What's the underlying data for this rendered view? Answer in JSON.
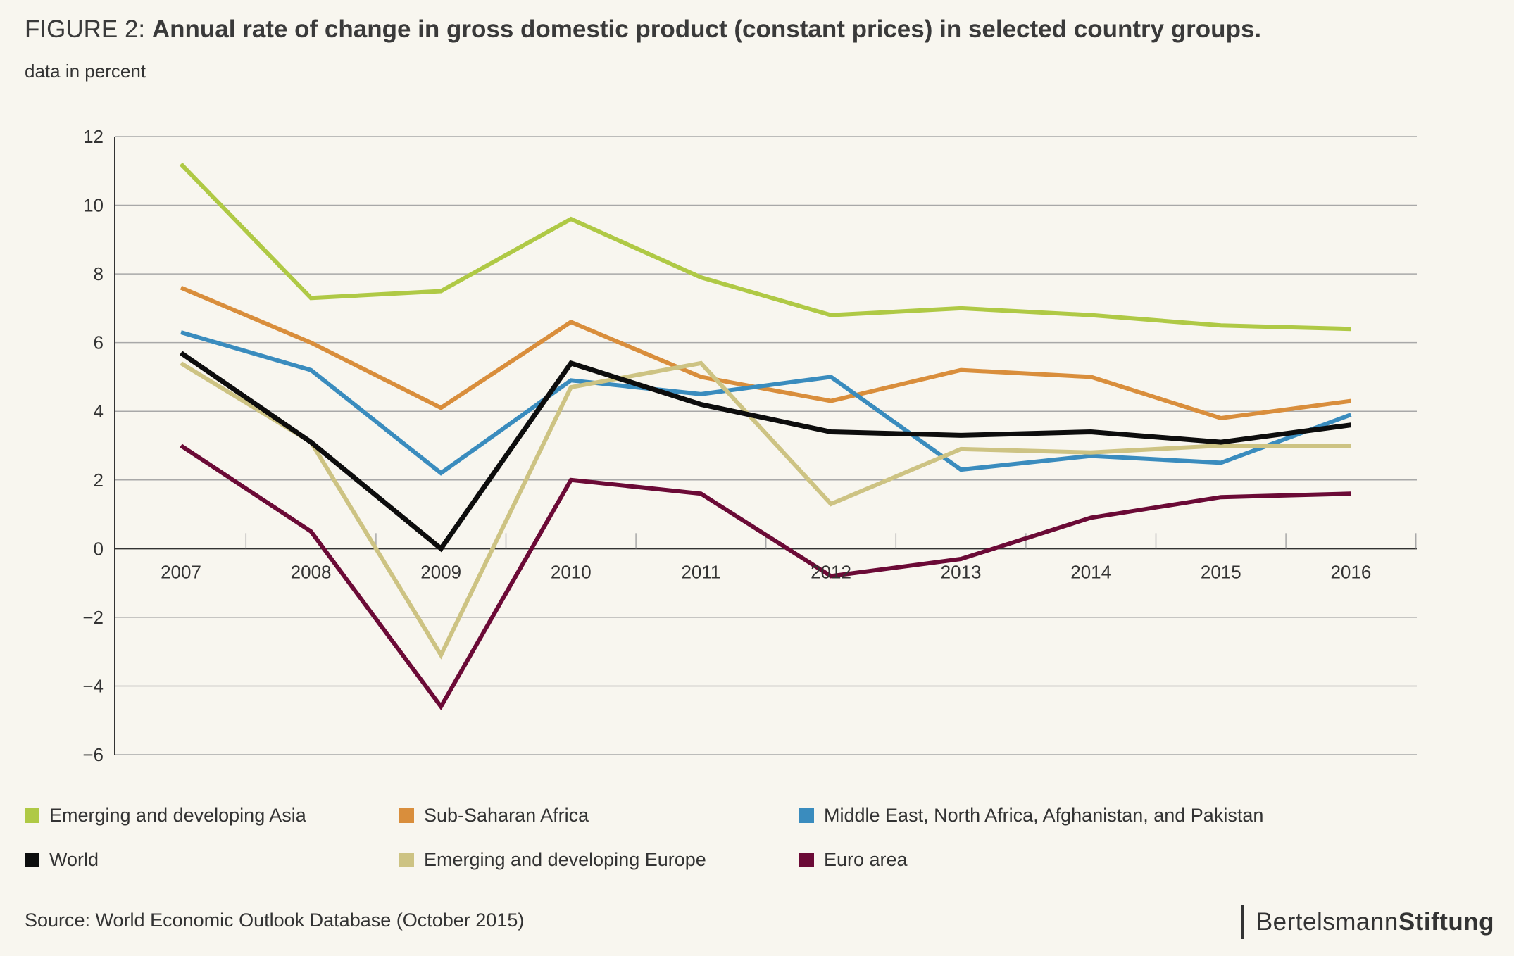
{
  "header": {
    "figure_label": "FIGURE 2: ",
    "title": "Annual rate of change in gross domestic product (constant prices) in selected country groups.",
    "subtitle": "data in percent"
  },
  "chart_data": {
    "type": "line",
    "title": "Annual rate of change in gross domestic product (constant prices) in selected country groups.",
    "ylabel": "data in percent",
    "x": [
      "2007",
      "2008",
      "2009",
      "2010",
      "2011",
      "2012",
      "2013",
      "2014",
      "2015",
      "2016"
    ],
    "ylim": [
      -6,
      12
    ],
    "yticks": [
      12,
      10,
      8,
      6,
      4,
      2,
      0,
      -2,
      -4,
      -6
    ],
    "ytick_labels": [
      "12",
      "10",
      "8",
      "6",
      "4",
      "2",
      "0",
      "−2",
      "−4",
      "−6"
    ],
    "grid": "horizontal",
    "legend_position": "bottom",
    "series": [
      {
        "name": "Emerging and developing Asia",
        "color": "#afc945",
        "values": [
          11.2,
          7.3,
          7.5,
          9.6,
          7.9,
          6.8,
          7.0,
          6.8,
          6.5,
          6.4
        ]
      },
      {
        "name": "Sub-Saharan Africa",
        "color": "#d98e3c",
        "values": [
          7.6,
          6.0,
          4.1,
          6.6,
          5.0,
          4.3,
          5.2,
          5.0,
          3.8,
          4.3
        ]
      },
      {
        "name": "Middle East, North Africa, Afghanistan, and Pakistan",
        "color": "#3a8cbe",
        "values": [
          6.3,
          5.2,
          2.2,
          4.9,
          4.5,
          5.0,
          2.3,
          2.7,
          2.5,
          3.9
        ]
      },
      {
        "name": "Emerging and developing Europe",
        "color": "#cdc383",
        "values": [
          5.4,
          3.1,
          -3.1,
          4.7,
          5.4,
          1.3,
          2.9,
          2.8,
          3.0,
          3.0
        ]
      },
      {
        "name": "Euro area",
        "color": "#6b0a36",
        "values": [
          3.0,
          0.5,
          -4.6,
          2.0,
          1.6,
          -0.8,
          -0.3,
          0.9,
          1.5,
          1.6
        ]
      },
      {
        "name": "World",
        "color": "#0d0d0d",
        "values": [
          5.7,
          3.1,
          0.0,
          5.4,
          4.2,
          3.4,
          3.3,
          3.4,
          3.1,
          3.6
        ]
      }
    ]
  },
  "legend": {
    "items": [
      {
        "label": "Emerging and developing Asia",
        "color": "#afc945"
      },
      {
        "label": "Sub-Saharan Africa",
        "color": "#d98e3c"
      },
      {
        "label": "Middle East, North Africa, Afghanistan, and Pakistan",
        "color": "#3a8cbe"
      },
      {
        "label": "World",
        "color": "#0d0d0d"
      },
      {
        "label": "Emerging and developing Europe",
        "color": "#cdc383"
      },
      {
        "label": "Euro area",
        "color": "#6b0a36"
      }
    ]
  },
  "footer": {
    "source": "Source: World Economic Outlook Database (October 2015)",
    "logo_regular": "Bertelsmann",
    "logo_bold": "Stiftung"
  }
}
